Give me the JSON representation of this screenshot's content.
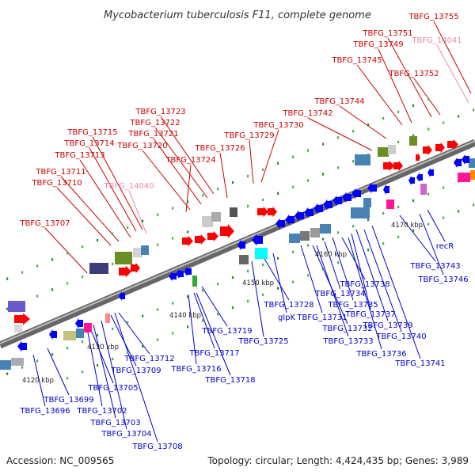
{
  "title": "Mycobacterium tuberculosis F11, complete genome",
  "footer": {
    "accession": "Accession: NC_009565",
    "summary": "Topology: circular; Length: 4,424,435 bp; Genes: 3,989"
  },
  "colors": {
    "top_strand_label": "#cc0000",
    "bottom_strand_label": "#0000cc",
    "rna_label": "#ee88aa",
    "backbone": "#999999"
  },
  "ticks": [
    "4120 kbp",
    "4130 kbp",
    "4140 kbp",
    "4150 kbp",
    "4160 kbp",
    "4170 kbp"
  ],
  "top_labels": [
    "TBFG_13755",
    "TBFG_13751",
    "TBFG_14041",
    "TBFG_13749",
    "TBFG_13745",
    "TBFG_13752",
    "TBFG_13744",
    "TBFG_13742",
    "TBFG_13723",
    "TBFG_13722",
    "TBFG_13730",
    "TBFG_13721",
    "TBFG_13715",
    "TBFG_13729",
    "TBFG_13714",
    "TBFG_13720",
    "TBFG_13726",
    "TBFG_13713",
    "TBFG_13724",
    "TBFG_13711",
    "TBFG_13710",
    "TBFG_14040",
    "TBFG_13707"
  ],
  "bottom_labels": [
    "TBFG_13743",
    "recR",
    "TBFG_13746",
    "TBFG_13738",
    "TBFG_13734",
    "TBFG_13728",
    "TBFG_13731",
    "TBFG_13735",
    "TBFG_13737",
    "glpK",
    "TBFG_13732",
    "TBFG_13739",
    "TBFG_13733",
    "TBFG_13740",
    "TBFG_13736",
    "TBFG_13741",
    "TBFG_13719",
    "TBFG_13725",
    "TBFG_13717",
    "TBFG_13712",
    "TBFG_13716",
    "TBFG_13709",
    "TBFG_13718",
    "TBFG_13705",
    "TBFG_13699",
    "TBFG_13702",
    "TBFG_13696",
    "TBFG_13703",
    "TBFG_13704",
    "TBFG_13708"
  ]
}
